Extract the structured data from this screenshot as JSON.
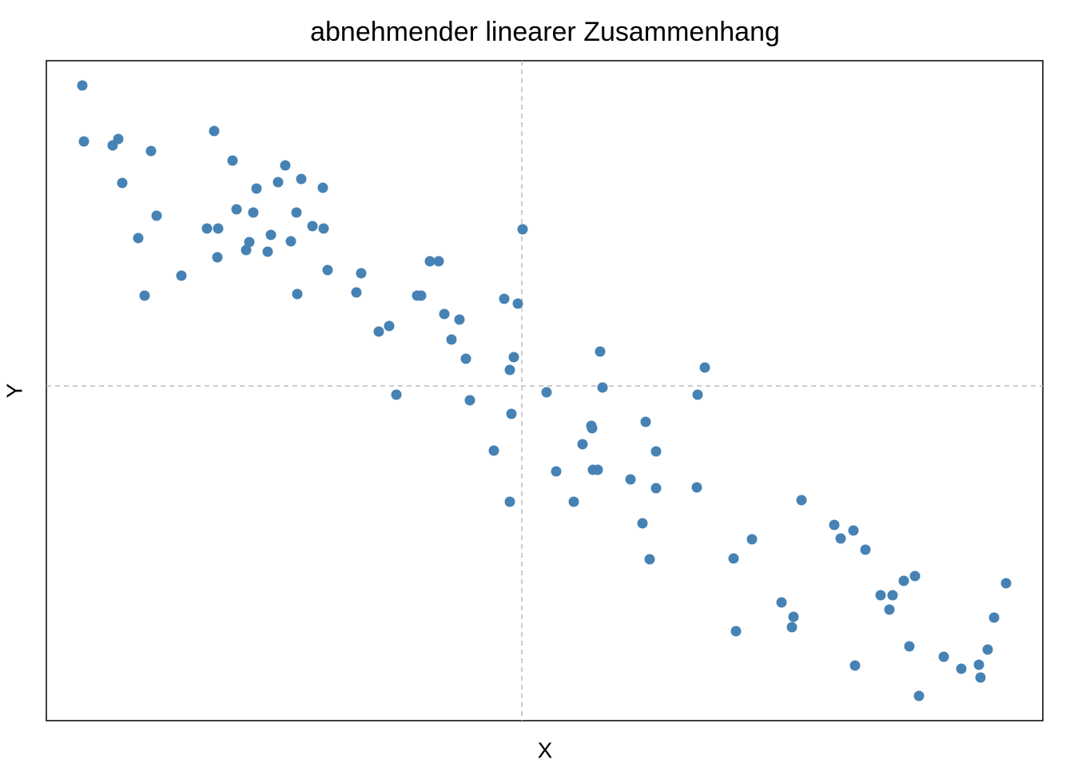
{
  "chart_data": {
    "type": "scatter",
    "title": "abnehmender linearer Zusammenhang",
    "x_label": "X",
    "y_label": "Y",
    "color": "#4682b4",
    "xlim": [
      -5.95,
      6.52
    ],
    "ylim": [
      -4.19,
      4.07
    ],
    "reference_lines": {
      "x": 0,
      "y": 0
    },
    "x": [
      -5.5,
      -5.48,
      -5.12,
      -5.05,
      -4.64,
      -5.0,
      -4.57,
      -4.8,
      -4.72,
      -4.26,
      -3.85,
      -3.62,
      -3.32,
      -3.57,
      -3.36,
      -3.94,
      -3.8,
      -3.81,
      -3.41,
      -3.45,
      -3.14,
      -3.18,
      -2.96,
      -3.05,
      -2.76,
      -2.49,
      -2.82,
      -2.62,
      -2.48,
      -2.89,
      -2.81,
      -2.43,
      -2.01,
      -2.07,
      -1.79,
      -1.66,
      -1.57,
      -1.15,
      -1.04,
      -1.31,
      -1.26,
      -0.97,
      -0.78,
      -0.88,
      -0.7,
      -0.65,
      -0.22,
      -0.05,
      0.01,
      -0.1,
      -0.15,
      -0.13,
      -0.35,
      -0.15,
      0.31,
      0.43,
      0.65,
      0.98,
      1.01,
      0.87,
      0.88,
      0.76,
      0.89,
      0.95,
      1.36,
      1.55,
      1.68,
      1.68,
      1.51,
      1.6,
      2.29,
      2.2,
      2.19,
      2.65,
      2.88,
      2.68,
      3.5,
      3.25,
      3.4,
      3.38,
      3.91,
      3.99,
      4.15,
      4.3,
      4.49,
      4.64,
      4.6,
      4.78,
      4.92,
      4.17,
      4.85,
      4.97,
      5.28,
      5.5,
      5.72,
      5.74,
      5.83,
      5.91,
      6.06
    ],
    "values": [
      3.76,
      3.06,
      3.01,
      3.09,
      2.94,
      2.54,
      2.13,
      1.85,
      1.13,
      1.38,
      3.19,
      2.82,
      2.47,
      2.21,
      2.17,
      1.97,
      1.97,
      1.61,
      1.8,
      1.7,
      1.89,
      1.68,
      2.76,
      2.55,
      2.59,
      2.48,
      2.17,
      2.0,
      1.97,
      1.81,
      1.15,
      1.45,
      1.41,
      1.17,
      0.68,
      0.75,
      -0.11,
      1.56,
      1.56,
      1.13,
      1.13,
      0.9,
      0.83,
      0.58,
      0.34,
      -0.18,
      1.09,
      1.03,
      1.96,
      0.36,
      0.2,
      -0.35,
      -0.81,
      -1.45,
      -0.08,
      -1.07,
      -1.45,
      0.43,
      -0.02,
      -0.5,
      -0.53,
      -0.73,
      -1.05,
      -1.05,
      -1.17,
      -0.45,
      -0.82,
      -1.28,
      -1.72,
      -2.17,
      0.23,
      -0.11,
      -1.27,
      -2.16,
      -1.92,
      -3.07,
      -1.43,
      -2.71,
      -2.89,
      -3.02,
      -1.74,
      -1.91,
      -1.81,
      -2.05,
      -2.62,
      -2.62,
      -2.8,
      -2.44,
      -2.38,
      -3.5,
      -3.26,
      -3.88,
      -3.39,
      -3.54,
      -3.49,
      -3.65,
      -3.3,
      -2.9,
      -2.47
    ]
  }
}
